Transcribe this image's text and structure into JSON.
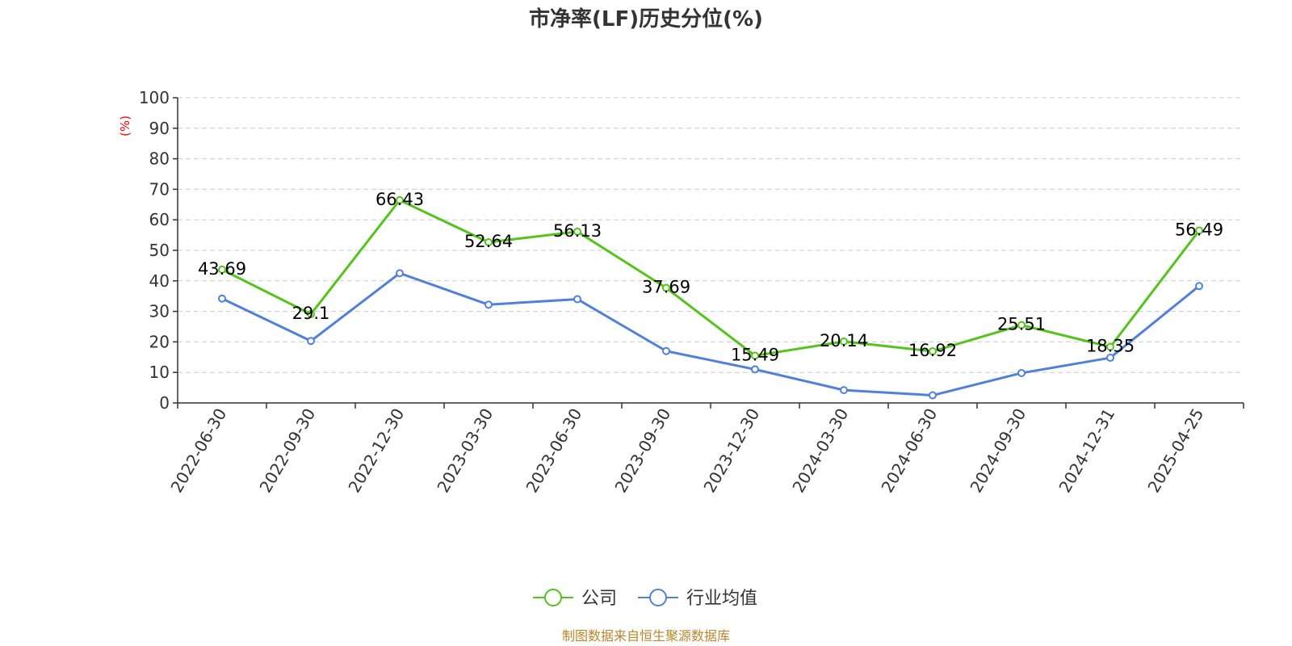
{
  "chart_data": {
    "type": "line",
    "title": "市净率(LF)历史分位(%)",
    "ylabel": "(%)",
    "xlabel": "",
    "ylim": [
      0,
      100
    ],
    "yticks": [
      0,
      10,
      20,
      30,
      40,
      50,
      60,
      70,
      80,
      90,
      100
    ],
    "grid": true,
    "legend_position": "bottom-center",
    "categories": [
      "2022-06-30",
      "2022-09-30",
      "2022-12-30",
      "2023-03-30",
      "2023-06-30",
      "2023-09-30",
      "2023-12-30",
      "2024-03-30",
      "2024-06-30",
      "2024-09-30",
      "2024-12-31",
      "2025-04-25"
    ],
    "series": [
      {
        "name": "公司",
        "color": "#52c41a",
        "values": [
          43.69,
          29.1,
          66.43,
          52.64,
          56.13,
          37.69,
          15.49,
          20.14,
          16.92,
          25.51,
          18.35,
          56.49
        ],
        "labels": [
          "43.69",
          "29.1",
          "66.43",
          "52.64",
          "56.13",
          "37.69",
          "15.49",
          "20.14",
          "16.92",
          "25.51",
          "18.35",
          "56.49"
        ]
      },
      {
        "name": "行业均值",
        "color": "#4f81dc",
        "values": [
          34.2,
          20.3,
          42.5,
          32.2,
          34.0,
          17.0,
          11.0,
          4.2,
          2.5,
          9.8,
          14.8,
          38.3
        ]
      }
    ]
  },
  "source": "制图数据来自恒生聚源数据库"
}
